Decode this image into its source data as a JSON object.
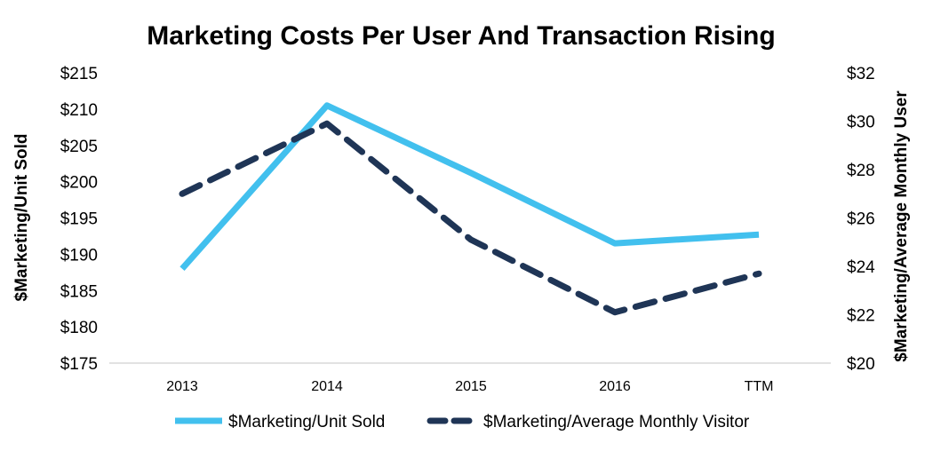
{
  "chart_data": {
    "type": "line",
    "title": "Marketing Costs Per User And Transaction Rising",
    "categories": [
      "2013",
      "2014",
      "2015",
      "2016",
      "TTM"
    ],
    "left_axis": {
      "label": "$Marketing/Unit Sold",
      "range": [
        175,
        215
      ],
      "ticks": [
        "$175",
        "$180",
        "$185",
        "$190",
        "$195",
        "$200",
        "$205",
        "$210",
        "$215"
      ]
    },
    "right_axis": {
      "label": "$Marketing/Average Monthly User",
      "range": [
        20,
        32
      ],
      "ticks": [
        "$20",
        "$22",
        "$24",
        "$26",
        "$28",
        "$30",
        "$32"
      ]
    },
    "series": [
      {
        "name": "$Marketing/Unit Sold",
        "axis": "left",
        "style": "solid",
        "color": "#42c0ee",
        "values": [
          188,
          210.5,
          201.2,
          191.5,
          192.7
        ]
      },
      {
        "name": "$Marketing/Average Monthly Visitor",
        "axis": "right",
        "style": "dashed",
        "color": "#1f3556",
        "values": [
          27,
          29.9,
          25.1,
          22.1,
          23.7
        ]
      }
    ],
    "grid": false,
    "legend_position": "bottom"
  }
}
